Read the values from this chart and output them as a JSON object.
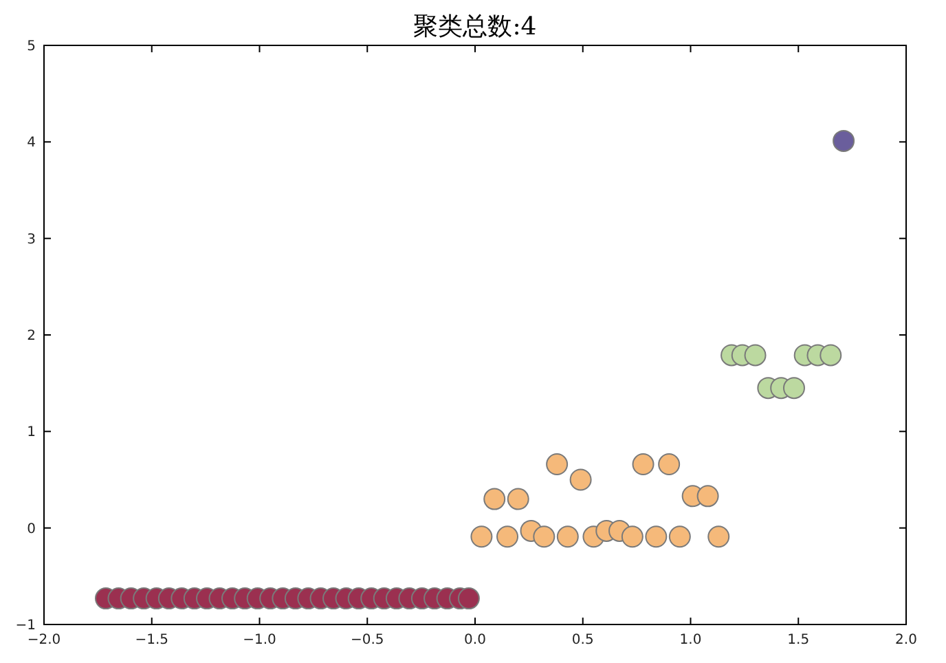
{
  "chart_data": {
    "type": "scatter",
    "title": "聚类总数:4",
    "marker": "circle",
    "xlim": [
      -2,
      2
    ],
    "ylim": [
      -1,
      5
    ],
    "xticks": [
      {
        "value": -2,
        "label": "−2.0"
      },
      {
        "value": -1.5,
        "label": "−1.5"
      },
      {
        "value": -1,
        "label": "−1.0"
      },
      {
        "value": -0.5,
        "label": "−0.5"
      },
      {
        "value": 0,
        "label": "0.0"
      },
      {
        "value": 0.5,
        "label": "0.5"
      },
      {
        "value": 1,
        "label": "1.0"
      },
      {
        "value": 1.5,
        "label": "1.5"
      },
      {
        "value": 2,
        "label": "2.0"
      }
    ],
    "yticks": [
      {
        "value": -1,
        "label": "−1"
      },
      0,
      1,
      2,
      3,
      4,
      5
    ],
    "series": [
      {
        "color": "#9b3050",
        "x": [
          -1.713,
          -1.654,
          -1.596,
          -1.537,
          -1.478,
          -1.42,
          -1.361,
          -1.302,
          -1.244,
          -1.185,
          -1.126,
          -1.068,
          -1.009,
          -0.95,
          -0.892,
          -0.833,
          -0.774,
          -0.716,
          -0.657,
          -0.598,
          -0.54,
          -0.481,
          -0.422,
          -0.364,
          -0.305,
          -0.246,
          -0.188,
          -0.129,
          -0.07,
          -0.029
        ],
        "values": [
          -0.73,
          -0.73,
          -0.73,
          -0.73,
          -0.73,
          -0.73,
          -0.73,
          -0.73,
          -0.73,
          -0.73,
          -0.73,
          -0.73,
          -0.73,
          -0.73,
          -0.73,
          -0.73,
          -0.73,
          -0.73,
          -0.73,
          -0.73,
          -0.73,
          -0.73,
          -0.73,
          -0.73,
          -0.73,
          -0.73,
          -0.73,
          -0.73,
          -0.73,
          -0.73
        ]
      },
      {
        "color": "#f5b97a",
        "x": [
          0.03,
          0.15,
          0.26,
          0.32,
          0.43,
          0.55,
          0.61,
          0.67,
          0.73,
          0.84,
          0.95,
          1.13,
          0.09,
          0.2,
          1.01,
          1.08,
          0.38,
          0.49,
          0.78,
          0.9
        ],
        "values": [
          -0.09,
          -0.09,
          -0.03,
          -0.09,
          -0.09,
          -0.09,
          -0.03,
          -0.03,
          -0.09,
          -0.09,
          -0.09,
          -0.09,
          0.3,
          0.3,
          0.33,
          0.33,
          0.66,
          0.5,
          0.66,
          0.66
        ]
      },
      {
        "color": "#bcd9a0",
        "x": [
          1.19,
          1.24,
          1.3,
          1.53,
          1.59,
          1.65,
          1.36,
          1.42,
          1.48
        ],
        "values": [
          1.79,
          1.79,
          1.79,
          1.79,
          1.79,
          1.79,
          1.45,
          1.45,
          1.45
        ]
      },
      {
        "color": "#6a5e9c",
        "x": [
          1.71
        ],
        "values": [
          4.01
        ]
      }
    ]
  }
}
